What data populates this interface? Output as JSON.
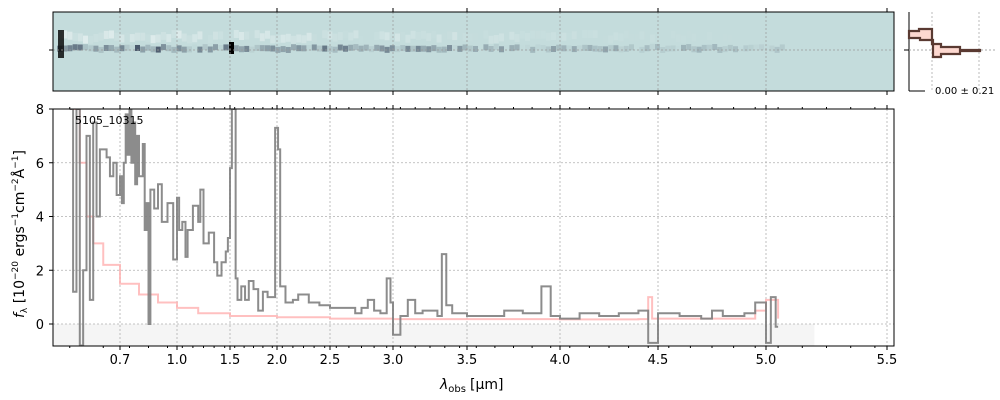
{
  "chart_data": {
    "type": "line",
    "object_label": "5105_10315",
    "xlabel_symbol": "λ",
    "xlabel_sub": "obs",
    "xlabel_unit": "[μm]",
    "ylabel": "f_λ [10^-20 ergs^-1cm^-2Å^-1]",
    "ylabel_parts": {
      "f": "f",
      "sub": "λ",
      "a": " [10",
      "e1": "−20",
      "b": " ergs",
      "e2": "−1",
      "c": "cm",
      "e3": "−2",
      "d": "Å",
      "e4": "−1",
      "e": "]"
    },
    "ylim": [
      -0.82,
      8
    ],
    "xlim": [
      0.5,
      5.52
    ],
    "xticks": [
      0.7,
      1.0,
      1.5,
      2.0,
      2.5,
      3.0,
      3.5,
      4.0,
      4.5,
      5.0,
      5.5
    ],
    "xtick_labels": [
      "0.7",
      "1.0",
      "1.5",
      "2.0",
      "2.5",
      "3.0",
      "3.5",
      "4.0",
      "4.5",
      "5.0",
      "5.5"
    ],
    "yticks": [
      0,
      2,
      4,
      6,
      8
    ],
    "ytick_labels": [
      "0",
      "2",
      "4",
      "6",
      "8"
    ],
    "grid": true,
    "shaded_region": {
      "y": [
        -0.82,
        0
      ],
      "x": [
        0.5,
        5.2
      ]
    },
    "series": [
      {
        "name": "spectrum",
        "color": "#808080",
        "x": [
          0.55,
          0.56,
          0.57,
          0.58,
          0.59,
          0.6,
          0.61,
          0.62,
          0.63,
          0.64,
          0.66,
          0.67,
          0.68,
          0.69,
          0.7,
          0.71,
          0.72,
          0.73,
          0.74,
          0.75,
          0.76,
          0.77,
          0.78,
          0.79,
          0.8,
          0.82,
          0.83,
          0.84,
          0.85,
          0.86,
          0.88,
          0.9,
          0.92,
          0.95,
          0.98,
          1.0,
          1.02,
          1.05,
          1.08,
          1.1,
          1.15,
          1.2,
          1.22,
          1.25,
          1.3,
          1.35,
          1.38,
          1.42,
          1.46,
          1.48,
          1.5,
          1.52,
          1.54,
          1.56,
          1.58,
          1.62,
          1.66,
          1.7,
          1.75,
          1.8,
          1.85,
          1.9,
          1.95,
          1.98,
          2.01,
          2.03,
          2.08,
          2.15,
          2.2,
          2.3,
          2.4,
          2.5,
          2.6,
          2.7,
          2.75,
          2.8,
          2.85,
          2.9,
          2.95,
          2.98,
          3.0,
          3.05,
          3.1,
          3.15,
          3.2,
          3.3,
          3.33,
          3.36,
          3.4,
          3.5,
          3.6,
          3.7,
          3.8,
          3.9,
          3.95,
          4.0,
          4.1,
          4.2,
          4.3,
          4.4,
          4.45,
          4.5,
          4.6,
          4.7,
          4.75,
          4.8,
          4.9,
          4.95,
          5.0,
          5.02,
          5.04,
          5.05
        ],
        "y": [
          8,
          1.2,
          8,
          -0.8,
          2,
          7,
          0.9,
          7.5,
          4,
          6.5,
          6.2,
          5.5,
          6,
          4.8,
          5.5,
          4.5,
          6,
          7.8,
          6.3,
          8,
          6,
          7.5,
          5.2,
          7,
          5.5,
          6.7,
          3.5,
          4.5,
          0,
          5,
          4.3,
          5.2,
          3.8,
          4.5,
          2.4,
          4.7,
          3.5,
          3.8,
          2.5,
          3.5,
          4.4,
          3.8,
          5,
          3,
          3.4,
          2.3,
          1.8,
          2.3,
          2.7,
          3.2,
          5.8,
          8,
          8,
          1.7,
          0.9,
          1.4,
          0.9,
          1.6,
          1.3,
          0.5,
          1.2,
          1,
          1.0,
          7.3,
          6.5,
          1.4,
          0.8,
          0.9,
          1.1,
          0.8,
          0.7,
          0.6,
          0.6,
          0.4,
          0.6,
          0.9,
          0.5,
          0.4,
          1.7,
          0.8,
          -0.4,
          0.3,
          0.9,
          0.4,
          0.5,
          0.3,
          2.6,
          0.7,
          0.4,
          0.3,
          0.3,
          0.5,
          0.4,
          1.4,
          0.3,
          0.2,
          0.4,
          0.3,
          0.4,
          0.5,
          -0.7,
          0.4,
          0.3,
          0.2,
          0.5,
          0.3,
          0.4,
          0.8,
          -0.7,
          1.0,
          -0.1,
          -0.1
        ]
      },
      {
        "name": "model",
        "color": "#ffb0b0",
        "x": [
          0.55,
          0.58,
          0.6,
          0.62,
          0.65,
          0.7,
          0.8,
          0.9,
          1.0,
          1.2,
          1.5,
          2.0,
          2.5,
          3.0,
          3.5,
          4.0,
          4.4,
          4.45,
          4.47,
          4.8,
          4.95,
          5.0,
          5.05
        ],
        "y": [
          8,
          6,
          4,
          3,
          2.2,
          1.5,
          1.1,
          0.8,
          0.6,
          0.4,
          0.3,
          0.25,
          0.2,
          0.18,
          0.18,
          0.17,
          0.18,
          1.0,
          0.2,
          0.2,
          0.5,
          0.9,
          0.2
        ]
      }
    ],
    "inset": {
      "type": "histogram",
      "label": "0.00 ± 0.21"
    }
  }
}
